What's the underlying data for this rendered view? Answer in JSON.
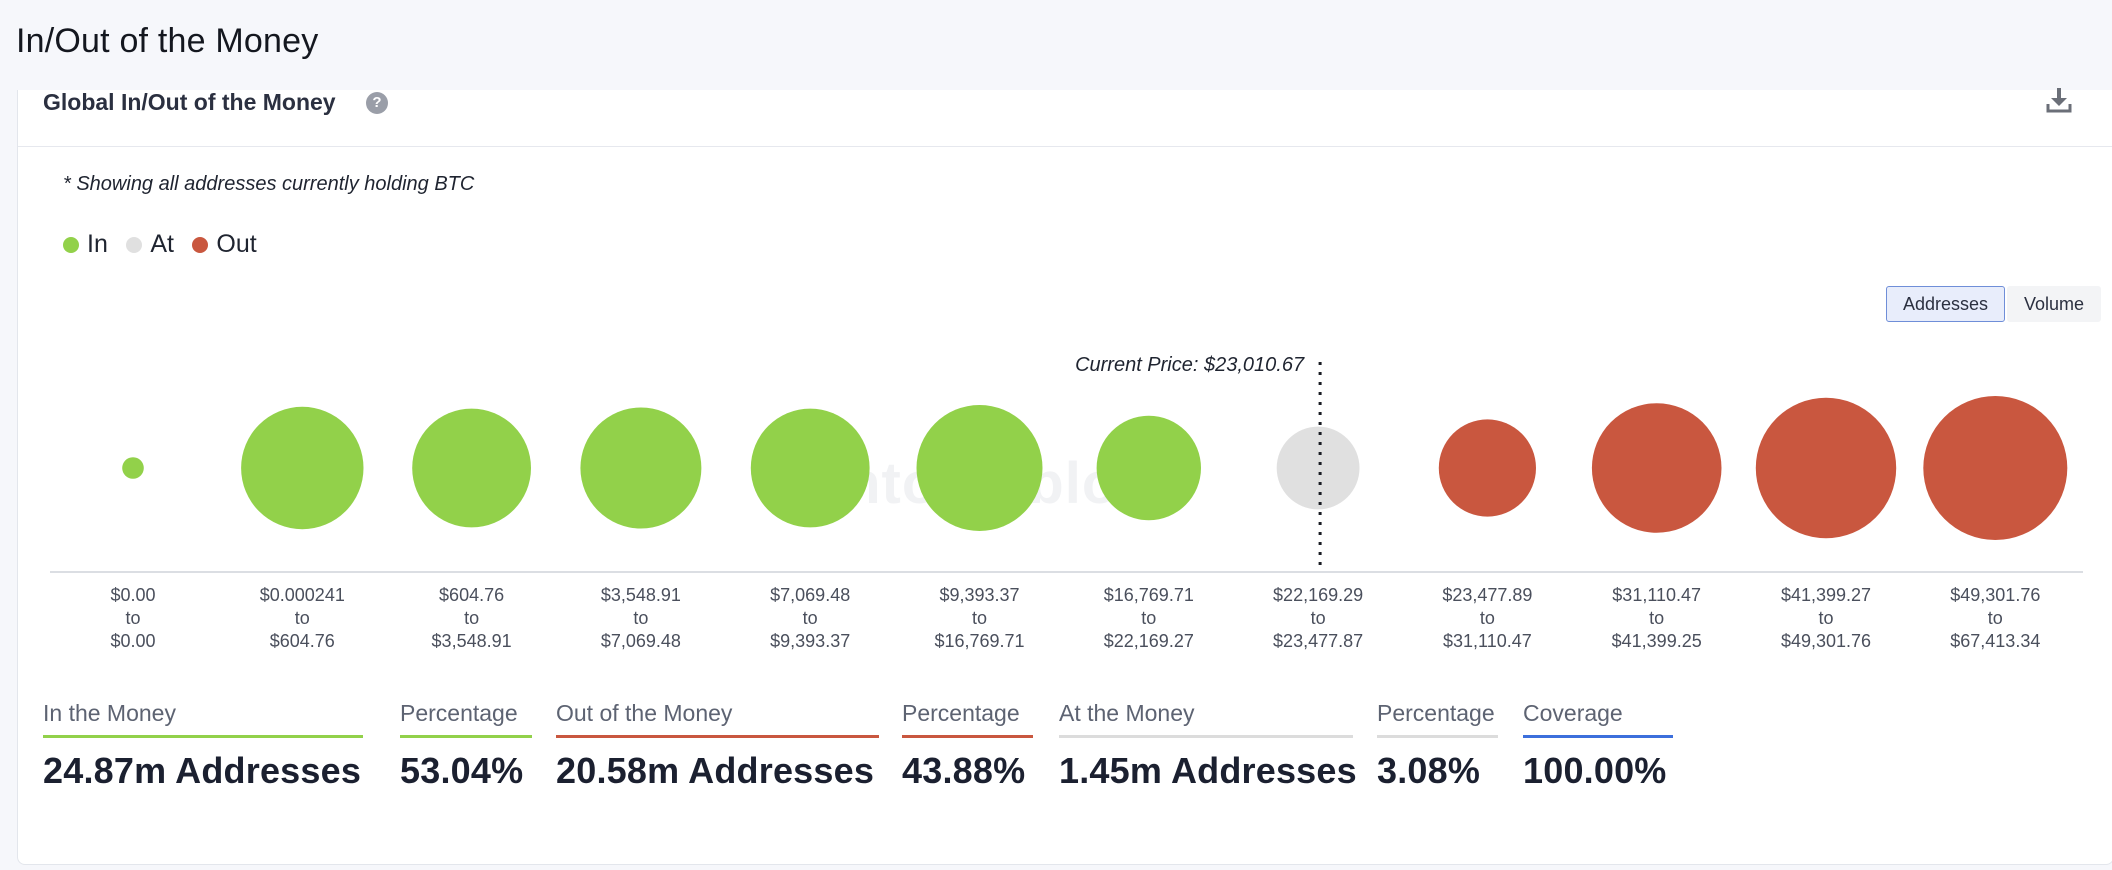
{
  "page": {
    "title": "In/Out of the Money"
  },
  "card": {
    "title": "Global In/Out of the Money",
    "help_icon": "question-circle-icon",
    "download_icon": "download-icon",
    "note": "* Showing all addresses currently holding BTC"
  },
  "legend": [
    {
      "label": "In",
      "color": "#92d14a"
    },
    {
      "label": "At",
      "color": "#e0e0e0"
    },
    {
      "label": "Out",
      "color": "#c9573f"
    }
  ],
  "toggle": {
    "addresses_label": "Addresses",
    "volume_label": "Volume",
    "selected": "Addresses"
  },
  "watermark": "intotheblock",
  "chart_data": {
    "type": "bubble",
    "current_price_label": "Current Price: $23,010.67",
    "bubbles": [
      {
        "from": "$0.00",
        "to": "$0.00",
        "status": "in",
        "relative_size": 0.3
      },
      {
        "from": "$0.000241",
        "to": "$604.76",
        "status": "in",
        "relative_size": 1.7
      },
      {
        "from": "$604.76",
        "to": "$3,548.91",
        "status": "in",
        "relative_size": 1.65
      },
      {
        "from": "$3,548.91",
        "to": "$7,069.48",
        "status": "in",
        "relative_size": 1.68
      },
      {
        "from": "$7,069.48",
        "to": "$9,393.37",
        "status": "in",
        "relative_size": 1.65
      },
      {
        "from": "$9,393.37",
        "to": "$16,769.71",
        "status": "in",
        "relative_size": 1.75
      },
      {
        "from": "$16,769.71",
        "to": "$22,169.27",
        "status": "in",
        "relative_size": 1.45
      },
      {
        "from": "$22,169.29",
        "to": "$23,477.87",
        "status": "at",
        "relative_size": 1.15
      },
      {
        "from": "$23,477.89",
        "to": "$31,110.47",
        "status": "out",
        "relative_size": 1.35
      },
      {
        "from": "$31,110.47",
        "to": "$41,399.25",
        "status": "out",
        "relative_size": 1.8
      },
      {
        "from": "$41,399.27",
        "to": "$49,301.76",
        "status": "out",
        "relative_size": 1.95
      },
      {
        "from": "$49,301.76",
        "to": "$67,413.34",
        "status": "out",
        "relative_size": 2.0
      }
    ],
    "connector": "to"
  },
  "stats": [
    {
      "label": "In the Money",
      "value": "24.87m Addresses",
      "color": "#92d14a"
    },
    {
      "label": "Percentage",
      "value": "53.04%",
      "color": "#92d14a"
    },
    {
      "label": "Out of the Money",
      "value": "20.58m Addresses",
      "color": "#c9573f"
    },
    {
      "label": "Percentage",
      "value": "43.88%",
      "color": "#c9573f"
    },
    {
      "label": "At the Money",
      "value": "1.45m Addresses",
      "color": "#dcdcdc"
    },
    {
      "label": "Percentage",
      "value": "3.08%",
      "color": "#dcdcdc"
    },
    {
      "label": "Coverage",
      "value": "100.00%",
      "color": "#3c6fdc"
    }
  ]
}
